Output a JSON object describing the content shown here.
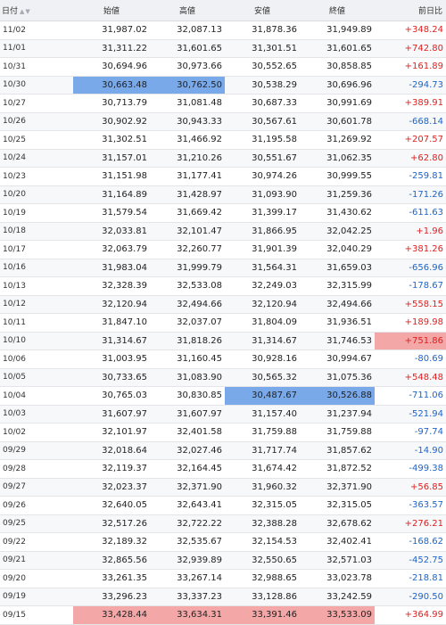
{
  "headers": {
    "date": "日付",
    "open": "始値",
    "high": "高値",
    "low": "安値",
    "close": "終値",
    "change": "前日比"
  },
  "sort_icons": "▲▼",
  "colors": {
    "positive": "#e02020",
    "negative": "#1f64c8",
    "highlight_low": "#7aa9ea",
    "highlight_high": "#f3a7a7"
  },
  "rows": [
    {
      "date": "11/02",
      "open": "31,987.02",
      "high": "32,087.13",
      "low": "31,878.36",
      "close": "31,949.89",
      "change": "+348.24",
      "dir": "pos"
    },
    {
      "date": "11/01",
      "open": "31,311.22",
      "high": "31,601.65",
      "low": "31,301.51",
      "close": "31,601.65",
      "change": "+742.80",
      "dir": "pos"
    },
    {
      "date": "10/31",
      "open": "30,694.96",
      "high": "30,973.66",
      "low": "30,552.65",
      "close": "30,858.85",
      "change": "+161.89",
      "dir": "pos"
    },
    {
      "date": "10/30",
      "open": "30,663.48",
      "high": "30,762.50",
      "low": "30,538.29",
      "close": "30,696.96",
      "change": "-294.73",
      "dir": "neg",
      "hl": {
        "open": "low",
        "high": "low"
      }
    },
    {
      "date": "10/27",
      "open": "30,713.79",
      "high": "31,081.48",
      "low": "30,687.33",
      "close": "30,991.69",
      "change": "+389.91",
      "dir": "pos"
    },
    {
      "date": "10/26",
      "open": "30,902.92",
      "high": "30,943.33",
      "low": "30,567.61",
      "close": "30,601.78",
      "change": "-668.14",
      "dir": "neg"
    },
    {
      "date": "10/25",
      "open": "31,302.51",
      "high": "31,466.92",
      "low": "31,195.58",
      "close": "31,269.92",
      "change": "+207.57",
      "dir": "pos"
    },
    {
      "date": "10/24",
      "open": "31,157.01",
      "high": "31,210.26",
      "low": "30,551.67",
      "close": "31,062.35",
      "change": "+62.80",
      "dir": "pos"
    },
    {
      "date": "10/23",
      "open": "31,151.98",
      "high": "31,177.41",
      "low": "30,974.26",
      "close": "30,999.55",
      "change": "-259.81",
      "dir": "neg"
    },
    {
      "date": "10/20",
      "open": "31,164.89",
      "high": "31,428.97",
      "low": "31,093.90",
      "close": "31,259.36",
      "change": "-171.26",
      "dir": "neg"
    },
    {
      "date": "10/19",
      "open": "31,579.54",
      "high": "31,669.42",
      "low": "31,399.17",
      "close": "31,430.62",
      "change": "-611.63",
      "dir": "neg"
    },
    {
      "date": "10/18",
      "open": "32,033.81",
      "high": "32,101.47",
      "low": "31,866.95",
      "close": "32,042.25",
      "change": "+1.96",
      "dir": "pos"
    },
    {
      "date": "10/17",
      "open": "32,063.79",
      "high": "32,260.77",
      "low": "31,901.39",
      "close": "32,040.29",
      "change": "+381.26",
      "dir": "pos"
    },
    {
      "date": "10/16",
      "open": "31,983.04",
      "high": "31,999.79",
      "low": "31,564.31",
      "close": "31,659.03",
      "change": "-656.96",
      "dir": "neg"
    },
    {
      "date": "10/13",
      "open": "32,328.39",
      "high": "32,533.08",
      "low": "32,249.03",
      "close": "32,315.99",
      "change": "-178.67",
      "dir": "neg"
    },
    {
      "date": "10/12",
      "open": "32,120.94",
      "high": "32,494.66",
      "low": "32,120.94",
      "close": "32,494.66",
      "change": "+558.15",
      "dir": "pos"
    },
    {
      "date": "10/11",
      "open": "31,847.10",
      "high": "32,037.07",
      "low": "31,804.09",
      "close": "31,936.51",
      "change": "+189.98",
      "dir": "pos"
    },
    {
      "date": "10/10",
      "open": "31,314.67",
      "high": "31,818.26",
      "low": "31,314.67",
      "close": "31,746.53",
      "change": "+751.86",
      "dir": "pos",
      "hl": {
        "change": "high"
      }
    },
    {
      "date": "10/06",
      "open": "31,003.95",
      "high": "31,160.45",
      "low": "30,928.16",
      "close": "30,994.67",
      "change": "-80.69",
      "dir": "neg"
    },
    {
      "date": "10/05",
      "open": "30,733.65",
      "high": "31,083.90",
      "low": "30,565.32",
      "close": "31,075.36",
      "change": "+548.48",
      "dir": "pos"
    },
    {
      "date": "10/04",
      "open": "30,765.03",
      "high": "30,830.85",
      "low": "30,487.67",
      "close": "30,526.88",
      "change": "-711.06",
      "dir": "neg",
      "hl": {
        "low": "low",
        "close": "low"
      }
    },
    {
      "date": "10/03",
      "open": "31,607.97",
      "high": "31,607.97",
      "low": "31,157.40",
      "close": "31,237.94",
      "change": "-521.94",
      "dir": "neg"
    },
    {
      "date": "10/02",
      "open": "32,101.97",
      "high": "32,401.58",
      "low": "31,759.88",
      "close": "31,759.88",
      "change": "-97.74",
      "dir": "neg"
    },
    {
      "date": "09/29",
      "open": "32,018.64",
      "high": "32,027.46",
      "low": "31,717.74",
      "close": "31,857.62",
      "change": "-14.90",
      "dir": "neg"
    },
    {
      "date": "09/28",
      "open": "32,119.37",
      "high": "32,164.45",
      "low": "31,674.42",
      "close": "31,872.52",
      "change": "-499.38",
      "dir": "neg"
    },
    {
      "date": "09/27",
      "open": "32,023.37",
      "high": "32,371.90",
      "low": "31,960.32",
      "close": "32,371.90",
      "change": "+56.85",
      "dir": "pos"
    },
    {
      "date": "09/26",
      "open": "32,640.05",
      "high": "32,643.41",
      "low": "32,315.05",
      "close": "32,315.05",
      "change": "-363.57",
      "dir": "neg"
    },
    {
      "date": "09/25",
      "open": "32,517.26",
      "high": "32,722.22",
      "low": "32,388.28",
      "close": "32,678.62",
      "change": "+276.21",
      "dir": "pos"
    },
    {
      "date": "09/22",
      "open": "32,189.32",
      "high": "32,535.67",
      "low": "32,154.53",
      "close": "32,402.41",
      "change": "-168.62",
      "dir": "neg"
    },
    {
      "date": "09/21",
      "open": "32,865.56",
      "high": "32,939.89",
      "low": "32,550.65",
      "close": "32,571.03",
      "change": "-452.75",
      "dir": "neg"
    },
    {
      "date": "09/20",
      "open": "33,261.35",
      "high": "33,267.14",
      "low": "32,988.65",
      "close": "33,023.78",
      "change": "-218.81",
      "dir": "neg"
    },
    {
      "date": "09/19",
      "open": "33,296.23",
      "high": "33,337.23",
      "low": "33,128.86",
      "close": "33,242.59",
      "change": "-290.50",
      "dir": "neg"
    },
    {
      "date": "09/15",
      "open": "33,428.44",
      "high": "33,634.31",
      "low": "33,391.46",
      "close": "33,533.09",
      "change": "+364.99",
      "dir": "pos",
      "hl": {
        "open": "high",
        "high": "high",
        "low": "high",
        "close": "high"
      }
    }
  ]
}
